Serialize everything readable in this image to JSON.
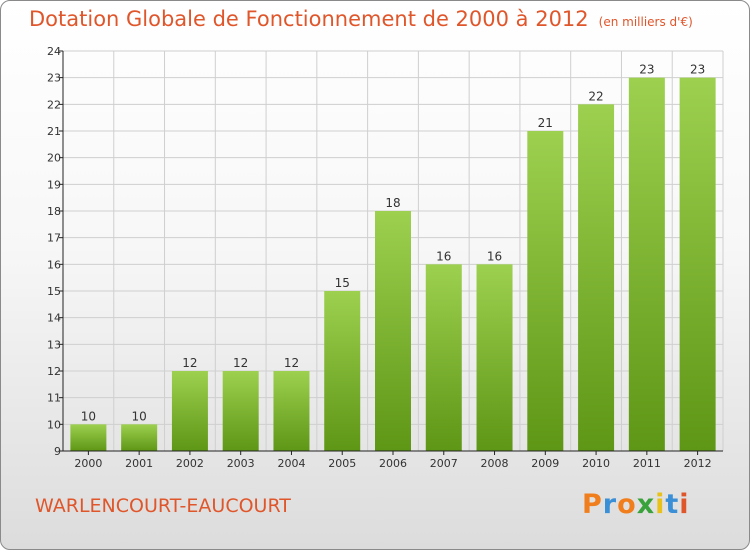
{
  "colors": {
    "title": "#e0562b",
    "bar_top": "#9dd04f",
    "bar_bottom": "#5e9615",
    "axis": "#222222",
    "grid": "#cfcfcf"
  },
  "footer": {
    "commune": "WARLENCOURT-EAUCOURT",
    "brand": {
      "letters": [
        "P",
        "r",
        "o",
        "x",
        "i",
        "t",
        "i"
      ],
      "colors": [
        "#f07e1c",
        "#3a8fd6",
        "#f07e1c",
        "#3aa23a",
        "#e8c21a",
        "#3a8fd6",
        "#e0562b"
      ]
    }
  },
  "chart_data": {
    "type": "bar",
    "title": "Dotation Globale de Fonctionnement de 2000 à 2012",
    "unit_note": "(en milliers d'€)",
    "xlabel": "",
    "ylabel": "",
    "categories": [
      "2000",
      "2001",
      "2002",
      "2003",
      "2004",
      "2005",
      "2006",
      "2007",
      "2008",
      "2009",
      "2010",
      "2011",
      "2012"
    ],
    "values": [
      10,
      10,
      12,
      12,
      12,
      15,
      18,
      16,
      16,
      21,
      22,
      23,
      23
    ],
    "data_labels": [
      "10",
      "10",
      "12",
      "12",
      "12",
      "15",
      "18",
      "16",
      "16",
      "21",
      "22",
      "23",
      "23"
    ],
    "ylim": [
      9,
      24
    ],
    "yticks": [
      "9",
      "10",
      "11",
      "12",
      "13",
      "14",
      "15",
      "16",
      "17",
      "18",
      "19",
      "20",
      "21",
      "22",
      "23",
      "24"
    ],
    "grid": true
  }
}
